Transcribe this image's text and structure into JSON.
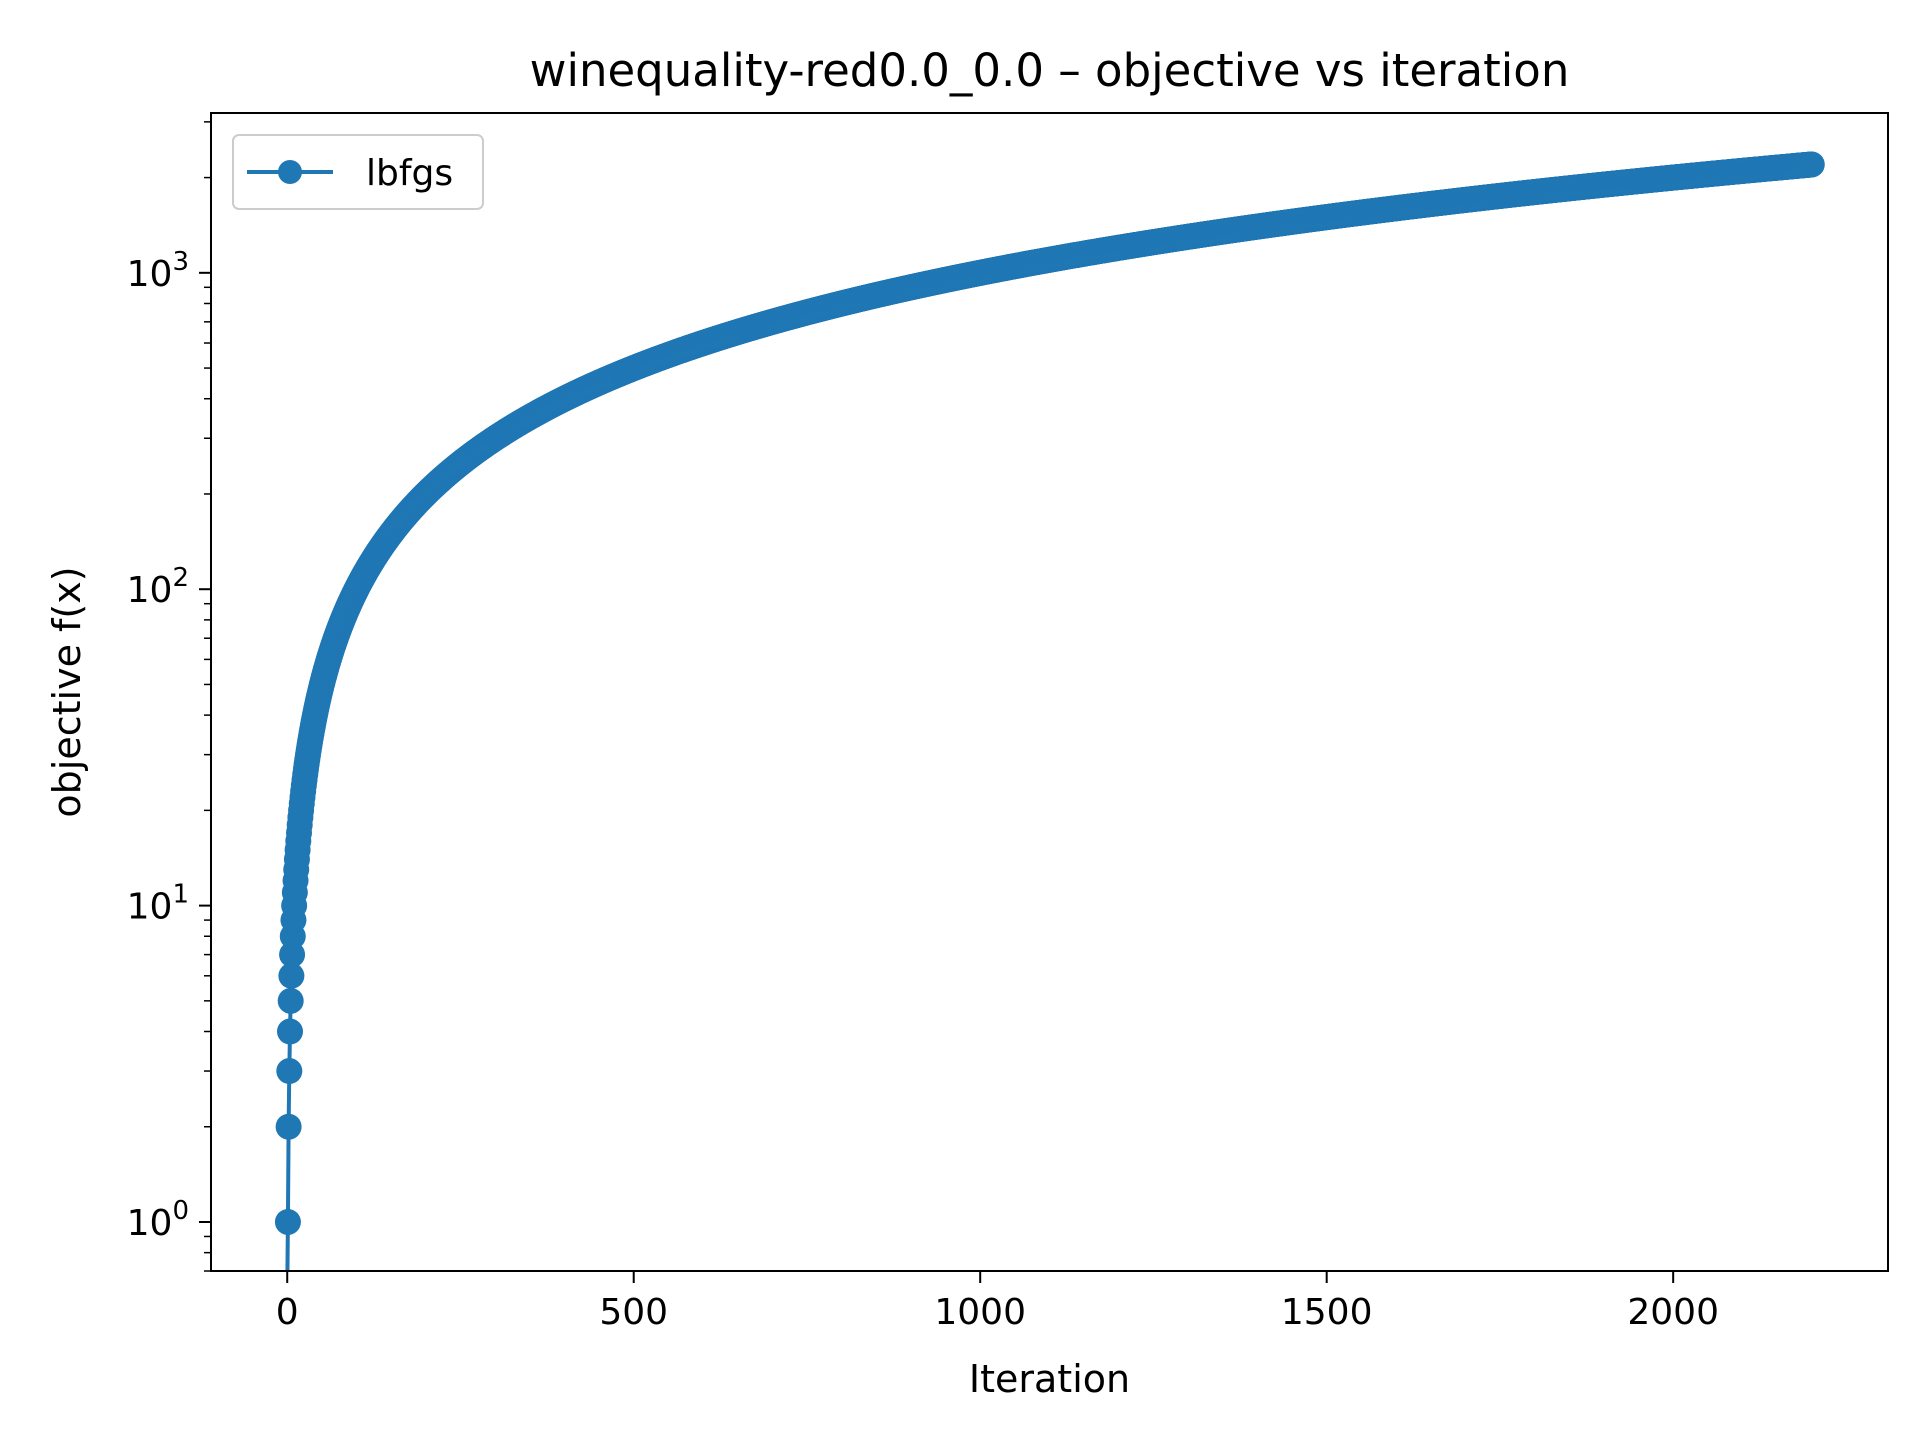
{
  "chart_data": {
    "type": "line",
    "title": "winequality-red0.0_0.0  –  objective vs iteration",
    "xlabel": "Iteration",
    "ylabel": "objective f(x)",
    "x_scale": "linear",
    "y_scale": "log",
    "xlim": [
      -110,
      2310
    ],
    "ylim": [
      0.7,
      3200
    ],
    "x_ticks": [
      0,
      500,
      1000,
      1500,
      2000
    ],
    "x_tick_labels": [
      "0",
      "500",
      "1000",
      "1500",
      "2000"
    ],
    "y_ticks": [
      1,
      10,
      100,
      1000
    ],
    "y_tick_labels": [
      {
        "base": "10",
        "exp": "0"
      },
      {
        "base": "10",
        "exp": "1"
      },
      {
        "base": "10",
        "exp": "2"
      },
      {
        "base": "10",
        "exp": "3"
      }
    ],
    "grid": false,
    "legend_position": "upper-left",
    "series": [
      {
        "name": "lbfgs",
        "color": "#1f77b4",
        "marker": "circle",
        "x_start": 0,
        "x_end": 2200,
        "x_step": 1,
        "formula_note": "y increases monotonically from 0 at iteration 0 to about 2200 at iteration 2200; markers at every iteration",
        "x": [
          0,
          1,
          2,
          3,
          4,
          5,
          6,
          7,
          8,
          10,
          15,
          20,
          30,
          50,
          75,
          100,
          150,
          200,
          300,
          500,
          750,
          1000,
          1250,
          1500,
          1750,
          2000,
          2200
        ],
        "y": [
          0,
          1,
          2,
          3,
          4,
          5,
          6,
          7,
          8,
          10,
          15,
          20,
          30,
          50,
          75,
          100,
          150,
          200,
          300,
          500,
          750,
          1000,
          1250,
          1500,
          1750,
          2000,
          2200
        ]
      }
    ]
  }
}
